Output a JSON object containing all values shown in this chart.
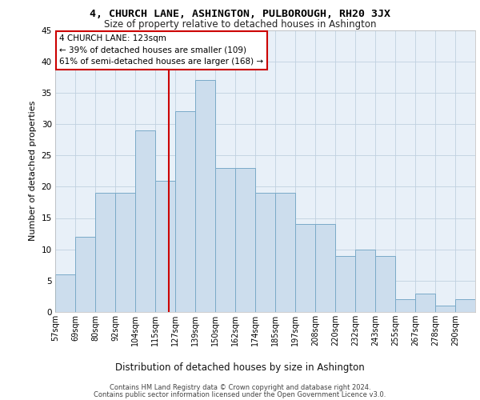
{
  "title": "4, CHURCH LANE, ASHINGTON, PULBOROUGH, RH20 3JX",
  "subtitle": "Size of property relative to detached houses in Ashington",
  "xlabel": "Distribution of detached houses by size in Ashington",
  "ylabel": "Number of detached properties",
  "categories": [
    "57sqm",
    "69sqm",
    "80sqm",
    "92sqm",
    "104sqm",
    "115sqm",
    "127sqm",
    "139sqm",
    "150sqm",
    "162sqm",
    "174sqm",
    "185sqm",
    "197sqm",
    "208sqm",
    "220sqm",
    "232sqm",
    "243sqm",
    "255sqm",
    "267sqm",
    "278sqm",
    "290sqm"
  ],
  "values": [
    6,
    12,
    19,
    19,
    29,
    21,
    32,
    37,
    23,
    23,
    19,
    19,
    14,
    14,
    9,
    10,
    9,
    2,
    3,
    1,
    2
  ],
  "bar_color": "#ccdded",
  "bar_edge_color": "#7aaac8",
  "bar_edge_width": 0.7,
  "annotation_line_color": "#cc0000",
  "annotation_box_text": "4 CHURCH LANE: 123sqm\n← 39% of detached houses are smaller (109)\n61% of semi-detached houses are larger (168) →",
  "annotation_box_color": "#ffffff",
  "annotation_box_edge_color": "#cc0000",
  "ylim": [
    0,
    45
  ],
  "yticks": [
    0,
    5,
    10,
    15,
    20,
    25,
    30,
    35,
    40,
    45
  ],
  "grid_color": "#c0d0e0",
  "background_color": "#e8f0f8",
  "footer_line1": "Contains HM Land Registry data © Crown copyright and database right 2024.",
  "footer_line2": "Contains public sector information licensed under the Open Government Licence v3.0."
}
